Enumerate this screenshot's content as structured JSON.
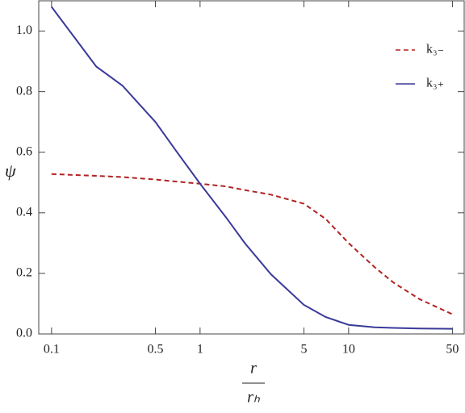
{
  "chart_data": {
    "type": "line",
    "x_label_numerator": "r",
    "x_label_denominator": "rₕ",
    "y_label": "ψ",
    "x": [
      0.1,
      0.2,
      0.3,
      0.5,
      0.7,
      1,
      1.5,
      2,
      3,
      5,
      7,
      10,
      15,
      20,
      30,
      50
    ],
    "series": [
      {
        "name": "k₃₋",
        "color": "#b22222",
        "dash": true,
        "values": [
          0.528,
          0.522,
          0.518,
          0.51,
          0.503,
          0.496,
          0.487,
          0.475,
          0.46,
          0.43,
          0.38,
          0.3,
          0.22,
          0.17,
          0.115,
          0.065
        ]
      },
      {
        "name": "k₃₊",
        "color": "#3a3a9a",
        "dash": false,
        "values": [
          1.08,
          0.883,
          0.82,
          0.7,
          0.6,
          0.496,
          0.384,
          0.3,
          0.197,
          0.096,
          0.056,
          0.03,
          0.022,
          0.02,
          0.018,
          0.017
        ]
      }
    ],
    "xlim": [
      0.082,
      60
    ],
    "ylim": [
      0,
      1.1
    ],
    "log_x": true,
    "xticks": [
      0.1,
      0.5,
      1,
      5,
      10,
      50
    ],
    "yticks": [
      {
        "value": 0,
        "label": "0.0"
      },
      0.2,
      0.4,
      0.6,
      0.8,
      {
        "value": 1,
        "label": "1.0"
      }
    ],
    "legend": "upper right"
  }
}
